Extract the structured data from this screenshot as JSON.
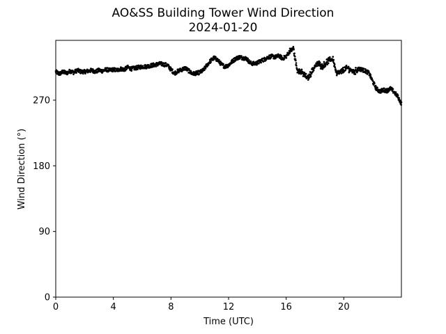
{
  "chart_data": {
    "type": "scatter",
    "title": "AO&SS Building Tower Wind Direction",
    "subtitle": "2024-01-20",
    "xlabel": "Time (UTC)",
    "ylabel": "Wind Direction (°)",
    "xlim": [
      0,
      24
    ],
    "ylim": [
      0,
      352
    ],
    "xticks": [
      0,
      4,
      8,
      12,
      16,
      20
    ],
    "yticks": [
      0,
      90,
      180,
      270
    ],
    "grid": false,
    "marker_color": "#000000",
    "series": [
      {
        "x": [
          0,
          0.25,
          0.5,
          0.75,
          1.0,
          1.25,
          1.5,
          1.75,
          2.0,
          2.25,
          2.5,
          2.75,
          3.0,
          3.25,
          3.5,
          3.75,
          4.0,
          4.25,
          4.5,
          4.75,
          5.0,
          5.25,
          5.5,
          5.75,
          6.0,
          6.25,
          6.5,
          6.75,
          7.0,
          7.25,
          7.5,
          7.75,
          8.0,
          8.25,
          8.5,
          8.75,
          9.0,
          9.25,
          9.5,
          9.75,
          10.0,
          10.25,
          10.5,
          10.75,
          11.0,
          11.25,
          11.5,
          11.75,
          12.0,
          12.25,
          12.5,
          12.75,
          13.0,
          13.25,
          13.5,
          13.75,
          14.0,
          14.25,
          14.5,
          14.75,
          15.0,
          15.25,
          15.5,
          15.75,
          16.0,
          16.25,
          16.5,
          16.75,
          17.0,
          17.25,
          17.5,
          17.75,
          18.0,
          18.25,
          18.5,
          18.75,
          19.0,
          19.25,
          19.5,
          19.75,
          20.0,
          20.25,
          20.5,
          20.75,
          21.0,
          21.25,
          21.5,
          21.75,
          22.0,
          22.25,
          22.5,
          22.75,
          23.0,
          23.25,
          23.5,
          23.75,
          24.0
        ],
        "y": [
          309,
          306,
          309,
          307,
          310,
          308,
          311,
          309,
          309,
          310,
          311,
          309,
          311,
          310,
          312,
          311,
          312,
          311,
          313,
          312,
          315,
          313,
          314,
          315,
          316,
          316,
          317,
          318,
          319,
          320,
          319,
          318,
          312,
          307,
          310,
          312,
          314,
          310,
          306,
          307,
          308,
          311,
          318,
          324,
          328,
          325,
          319,
          316,
          318,
          323,
          327,
          329,
          328,
          327,
          321,
          320,
          321,
          324,
          326,
          329,
          330,
          329,
          331,
          327,
          330,
          337,
          341,
          312,
          309,
          305,
          300,
          308,
          317,
          320,
          316,
          321,
          325,
          327,
          306,
          308,
          312,
          314,
          311,
          309,
          313,
          312,
          310,
          307,
          296,
          286,
          282,
          284,
          283,
          286,
          281,
          275,
          265
        ]
      }
    ]
  }
}
